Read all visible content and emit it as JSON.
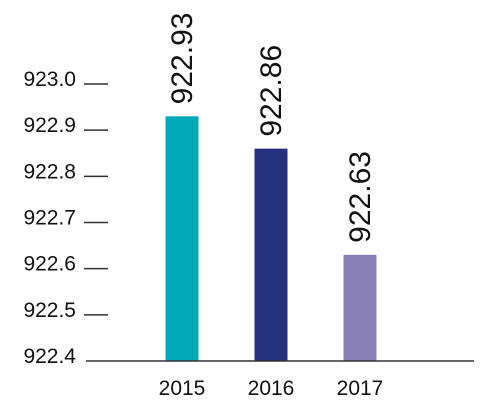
{
  "chart_data": {
    "type": "bar",
    "title": "",
    "xlabel": "",
    "ylabel": "",
    "categories": [
      "2015",
      "2016",
      "2017"
    ],
    "values": [
      922.93,
      922.86,
      922.63
    ],
    "value_labels": [
      "922.93",
      "922.86",
      "922.63"
    ],
    "colors": [
      "#00a9b5",
      "#26307c",
      "#8a80b8"
    ],
    "ylim": [
      922.4,
      923.0
    ],
    "yticks": [
      923.0,
      922.9,
      922.8,
      922.7,
      922.6,
      922.5,
      922.4
    ],
    "ytick_labels": [
      "923.0",
      "922.9",
      "922.8",
      "922.7",
      "922.6",
      "922.5",
      "922.4"
    ],
    "grid": false,
    "legend": "none",
    "axis_color": "#333333"
  }
}
